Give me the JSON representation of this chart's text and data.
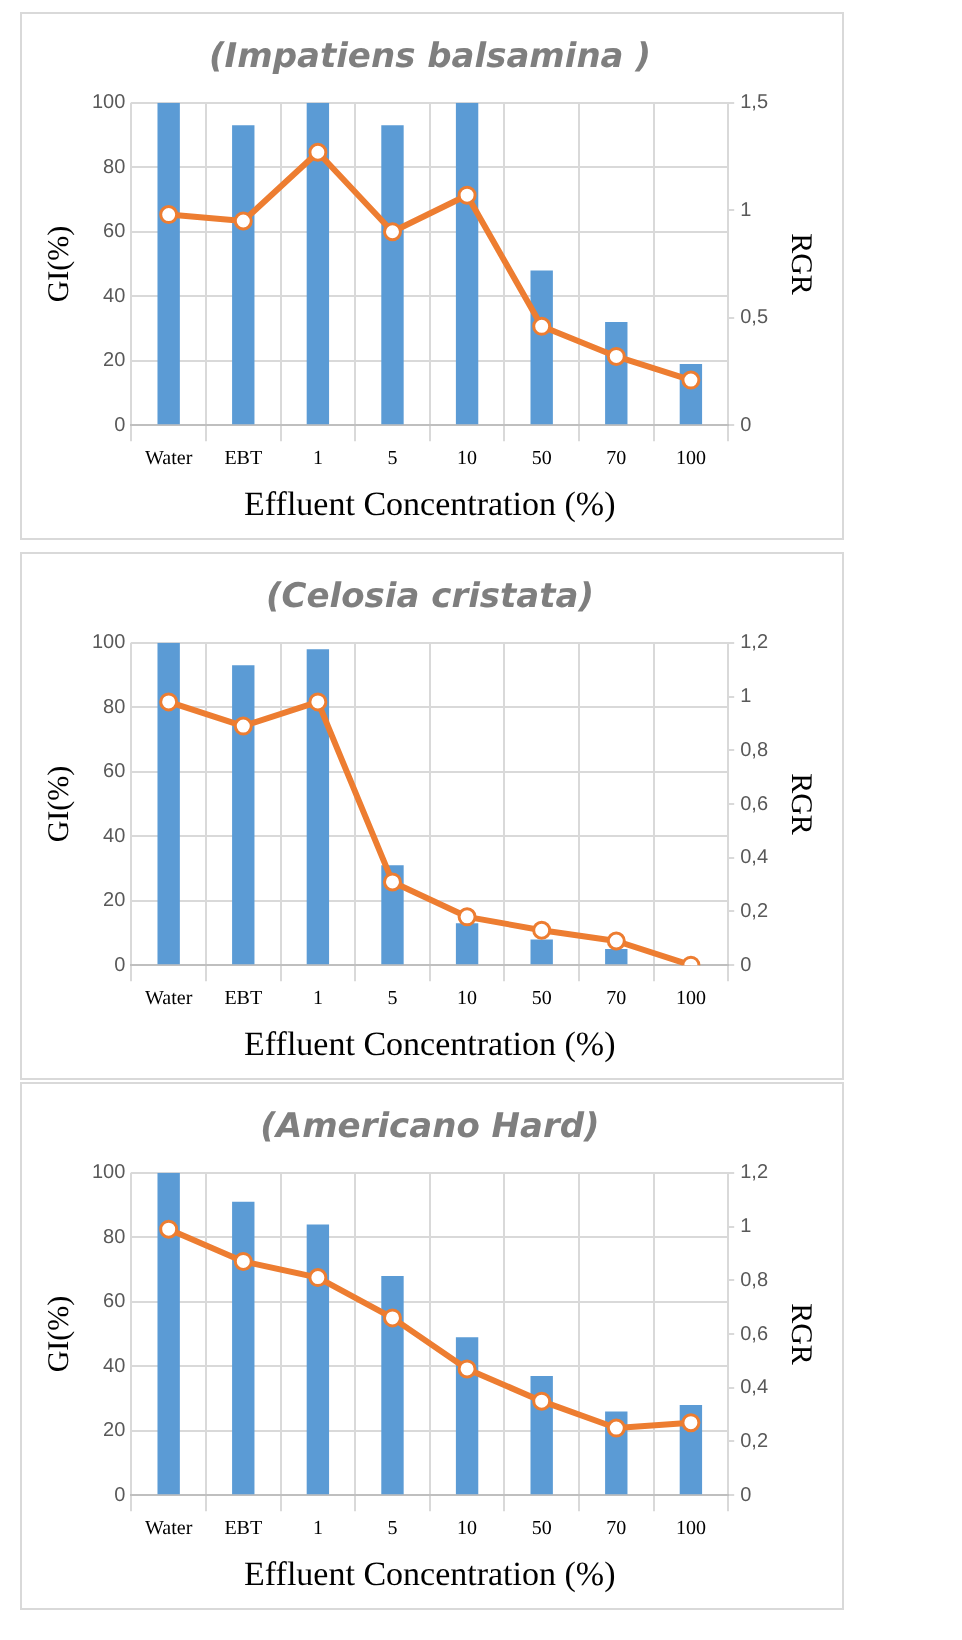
{
  "chart_data": [
    {
      "type": "bar",
      "title": "(Impatiens balsamina )",
      "xlabel": "Effluent Concentration (%)",
      "ylabel": "GI(%)",
      "y2label": "RGR",
      "categories": [
        "Water",
        "EBT",
        "1",
        "5",
        "10",
        "50",
        "70",
        "100"
      ],
      "series": [
        {
          "color": "#5b9bd5",
          "values": [
            100,
            93,
            100,
            93,
            100,
            48,
            32,
            19
          ]
        },
        {
          "type": "line",
          "axis": "y2",
          "color": "#ed7d31",
          "marker": "circle",
          "values": [
            0.98,
            0.95,
            1.27,
            0.9,
            1.07,
            0.46,
            0.32,
            0.21
          ]
        }
      ],
      "ylim": [
        0,
        100
      ],
      "yticks": [
        0,
        20,
        40,
        60,
        80,
        100
      ],
      "y2lim": [
        0,
        1.5
      ],
      "y2ticks": [
        {
          "value": 0,
          "label": "0"
        },
        {
          "value": 0.5,
          "label": "0,5"
        },
        {
          "value": 1,
          "label": "1"
        },
        {
          "value": 1.5,
          "label": "1,5"
        }
      ],
      "grid": true
    },
    {
      "type": "bar",
      "title": "(Celosia cristata)",
      "xlabel": "Effluent Concentration (%)",
      "ylabel": "GI(%)",
      "y2label": "RGR",
      "categories": [
        "Water",
        "EBT",
        "1",
        "5",
        "10",
        "50",
        "70",
        "100"
      ],
      "series": [
        {
          "color": "#5b9bd5",
          "values": [
            100,
            93,
            98,
            31,
            13,
            8,
            5,
            0
          ]
        },
        {
          "type": "line",
          "axis": "y2",
          "color": "#ed7d31",
          "marker": "circle",
          "values": [
            0.98,
            0.89,
            0.98,
            0.31,
            0.18,
            0.13,
            0.09,
            0
          ]
        }
      ],
      "ylim": [
        0,
        100
      ],
      "yticks": [
        0,
        20,
        40,
        60,
        80,
        100
      ],
      "y2lim": [
        0,
        1.2
      ],
      "y2ticks": [
        {
          "value": 0,
          "label": "0"
        },
        {
          "value": 0.2,
          "label": "0,2"
        },
        {
          "value": 0.4,
          "label": "0,4"
        },
        {
          "value": 0.6,
          "label": "0,6"
        },
        {
          "value": 0.8,
          "label": "0,8"
        },
        {
          "value": 1,
          "label": "1"
        },
        {
          "value": 1.2,
          "label": "1,2"
        }
      ],
      "grid": true
    },
    {
      "type": "bar",
      "title": "(Americano Hard)",
      "xlabel": "Effluent Concentration (%)",
      "ylabel": "GI(%)",
      "y2label": "RGR",
      "categories": [
        "Water",
        "EBT",
        "1",
        "5",
        "10",
        "50",
        "70",
        "100"
      ],
      "series": [
        {
          "color": "#5b9bd5",
          "values": [
            100,
            91,
            84,
            68,
            49,
            37,
            26,
            28
          ]
        },
        {
          "type": "line",
          "axis": "y2",
          "color": "#ed7d31",
          "marker": "circle",
          "values": [
            0.99,
            0.87,
            0.81,
            0.66,
            0.47,
            0.35,
            0.25,
            0.27
          ]
        }
      ],
      "ylim": [
        0,
        100
      ],
      "yticks": [
        0,
        20,
        40,
        60,
        80,
        100
      ],
      "y2lim": [
        0,
        1.2
      ],
      "y2ticks": [
        {
          "value": 0,
          "label": "0"
        },
        {
          "value": 0.2,
          "label": "0,2"
        },
        {
          "value": 0.4,
          "label": "0,4"
        },
        {
          "value": 0.6,
          "label": "0,6"
        },
        {
          "value": 0.8,
          "label": "0,8"
        },
        {
          "value": 1,
          "label": "1"
        },
        {
          "value": 1.2,
          "label": "1,2"
        }
      ],
      "grid": true
    }
  ]
}
